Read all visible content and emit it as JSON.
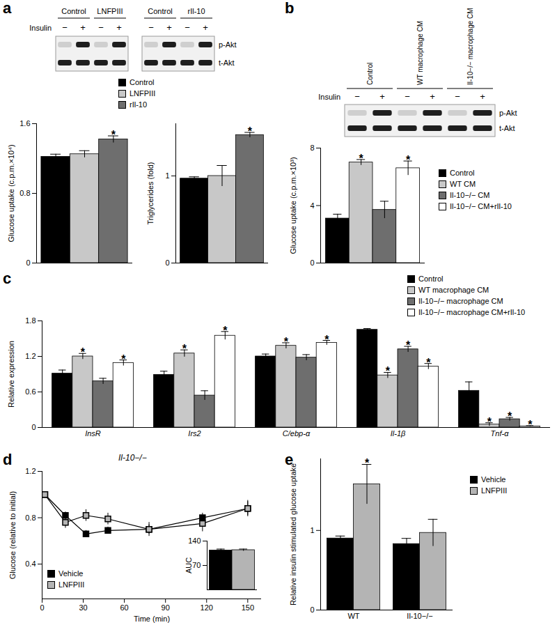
{
  "significance_mark": "*",
  "blots": {
    "insulin_label": "Insulin",
    "rows": [
      "p-Akt",
      "t-Akt"
    ],
    "panels": [
      {
        "panel": "a",
        "blocks": [
          {
            "groups": [
              "Control",
              "LNFPIII"
            ],
            "lanes": [
              "−",
              "+",
              "−",
              "+"
            ]
          },
          {
            "groups": [
              "Control",
              "rIl-10"
            ],
            "lanes": [
              "−",
              "+",
              "−",
              "+"
            ]
          }
        ]
      },
      {
        "panel": "b",
        "blocks": [
          {
            "groups": [
              "Control",
              "WT macrophage CM",
              "Il-10−/− macrophage CM"
            ],
            "lanes": [
              "−",
              "+",
              "−",
              "+",
              "−",
              "+"
            ]
          }
        ]
      }
    ]
  },
  "chart_data": [
    {
      "type": "bar",
      "y_label": "Glucose uptake (c.p.m.×10⁴)",
      "ylim": [
        0,
        1.6
      ],
      "yticks": [
        0,
        0.8,
        1.6
      ],
      "tick_labels": "y",
      "legend": "top",
      "series": [
        {
          "name": "Control",
          "color": "#000000",
          "values": [
            1.22
          ],
          "errors": [
            0.03
          ],
          "significant": [
            false
          ]
        },
        {
          "name": "LNFPIII",
          "color": "#c8c8c8",
          "values": [
            1.25
          ],
          "errors": [
            0.04
          ],
          "significant": [
            false
          ]
        },
        {
          "name": "rIl-10",
          "color": "#6e6e6e",
          "values": [
            1.42
          ],
          "errors": [
            0.04
          ],
          "significant": [
            true
          ]
        }
      ]
    },
    {
      "type": "bar",
      "y_label": "Triglycerides (fold)",
      "ylim": [
        0,
        1.6
      ],
      "yticks": [
        0,
        1
      ],
      "tick_labels": "y",
      "series": [
        {
          "color": "#000000",
          "values": [
            0.97
          ],
          "errors": [
            0.02
          ],
          "significant": [
            false
          ]
        },
        {
          "color": "#c8c8c8",
          "values": [
            1.0
          ],
          "errors": [
            0.12
          ],
          "significant": [
            false
          ]
        },
        {
          "color": "#6e6e6e",
          "values": [
            1.47
          ],
          "errors": [
            0.03
          ],
          "significant": [
            true
          ]
        }
      ]
    },
    {
      "type": "bar",
      "y_label": "Glucose uptake (c.p.m.×10³)",
      "ylim": [
        0,
        8
      ],
      "yticks": [
        0,
        4,
        8
      ],
      "tick_labels": "y",
      "legend": "right",
      "series": [
        {
          "name": "Control",
          "color": "#000000",
          "values": [
            3.1
          ],
          "errors": [
            0.3
          ],
          "significant": [
            false
          ]
        },
        {
          "name": "WT CM",
          "color": "#c8c8c8",
          "values": [
            7.0
          ],
          "errors": [
            0.2
          ],
          "significant": [
            true
          ]
        },
        {
          "name": "Il-10−/− CM",
          "color": "#6e6e6e",
          "values": [
            3.7
          ],
          "errors": [
            0.6
          ],
          "significant": [
            false
          ]
        },
        {
          "name": "Il-10−/− CM+rIl-10",
          "color": "#ffffff",
          "values": [
            6.6
          ],
          "errors": [
            0.5
          ],
          "significant": [
            true
          ]
        }
      ]
    },
    {
      "type": "bar",
      "panel": "c",
      "y_label": "Relative expression",
      "categories": [
        "InsR",
        "Irs2",
        "C/ebp-α",
        "Il-1β",
        "Tnf-α"
      ],
      "ylim": [
        0,
        1.8
      ],
      "yticks": [
        0,
        0.6,
        1.2,
        1.8
      ],
      "legend": "right",
      "series": [
        {
          "name": "Control",
          "color": "#000000",
          "values": [
            0.91,
            0.89,
            1.2,
            1.65,
            0.62
          ],
          "errors": [
            0.06,
            0.06,
            0.04,
            0.02,
            0.15
          ],
          "significant": [
            false,
            false,
            false,
            false,
            false
          ]
        },
        {
          "name": "WT macrophage CM",
          "color": "#c8c8c8",
          "values": [
            1.2,
            1.25,
            1.38,
            0.88,
            0.05
          ],
          "errors": [
            0.05,
            0.06,
            0.05,
            0.05,
            0.03
          ],
          "significant": [
            true,
            true,
            true,
            true,
            true
          ]
        },
        {
          "name": "Il-10−/− macrophage CM",
          "color": "#6e6e6e",
          "values": [
            0.78,
            0.54,
            1.18,
            1.32,
            0.14
          ],
          "errors": [
            0.05,
            0.08,
            0.05,
            0.05,
            0.03
          ],
          "significant": [
            false,
            false,
            false,
            true,
            true
          ]
        },
        {
          "name": "Il-10−/− macrophage CM+rIl-10",
          "color": "#ffffff",
          "values": [
            1.09,
            1.55,
            1.43,
            1.03,
            0.02
          ],
          "errors": [
            0.05,
            0.07,
            0.04,
            0.05,
            0.01
          ],
          "significant": [
            true,
            true,
            true,
            true,
            true
          ]
        }
      ]
    },
    {
      "type": "line",
      "panel": "d",
      "title": "Il-10−/−",
      "x_label": "Time (min)",
      "y_label": "Glucose (relative to initial)",
      "x": [
        2,
        17,
        32,
        48,
        78,
        117,
        150
      ],
      "xlim": [
        0,
        160
      ],
      "xticks": [
        0,
        30,
        60,
        90,
        120,
        150
      ],
      "ylim": [
        0.1,
        1.2
      ],
      "yticks": [
        0.4,
        0.8,
        1.2
      ],
      "legend": "bottom-left",
      "series": [
        {
          "name": "Vehicle",
          "color": "#000000",
          "marker": "square",
          "values": [
            1.0,
            0.82,
            0.66,
            0.69,
            0.7,
            0.8,
            0.88
          ],
          "errors": [
            0.02,
            0.03,
            0.03,
            0.03,
            0.04,
            0.04,
            0.06
          ]
        },
        {
          "name": "LNFPIII",
          "color": "#b4b4b4",
          "marker": "square",
          "values": [
            1.0,
            0.76,
            0.82,
            0.79,
            0.7,
            0.75,
            0.88
          ],
          "errors": [
            0.02,
            0.05,
            0.05,
            0.05,
            0.06,
            0.07,
            0.07
          ]
        }
      ]
    },
    {
      "type": "bar",
      "y_label": "AUC",
      "ylim": [
        0,
        140
      ],
      "yticks": [
        70,
        140
      ],
      "tick_labels": "y",
      "series": [
        {
          "color": "#000000",
          "values": [
            113
          ],
          "errors": [
            4
          ],
          "significant": [
            false
          ]
        },
        {
          "color": "#b4b4b4",
          "values": [
            114
          ],
          "errors": [
            3
          ],
          "significant": [
            false
          ]
        }
      ]
    },
    {
      "type": "bar",
      "panel": "e",
      "y_label": "Relative insulin stimulated glucose uptake",
      "categories": [
        "WT",
        "Il-10−/−"
      ],
      "ylim": [
        0,
        1.9
      ],
      "yticks": [
        0,
        1
      ],
      "legend": "right",
      "series": [
        {
          "name": "Vehicle",
          "color": "#000000",
          "values": [
            0.9,
            0.83
          ],
          "errors": [
            0.03,
            0.07
          ],
          "significant": [
            false,
            false
          ]
        },
        {
          "name": "LNFPIII",
          "color": "#b4b4b4",
          "values": [
            1.58,
            0.97
          ],
          "errors": [
            0.25,
            0.17
          ],
          "significant": [
            true,
            false
          ]
        }
      ]
    }
  ]
}
